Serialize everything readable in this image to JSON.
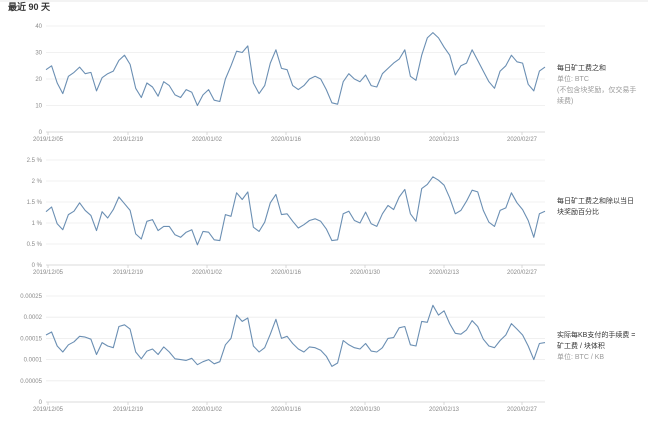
{
  "range_label": "最近 90 天",
  "chart_data": [
    {
      "type": "line",
      "title": "每日矿工费之和",
      "unit": "单位: BTC",
      "note": "(不包含块奖励，仅交易手续费)",
      "ylim": [
        0,
        40
      ],
      "y_ticks": [
        0,
        10,
        20,
        30,
        40
      ],
      "y_tick_labels": [
        "0",
        "10",
        "20",
        "30",
        "40"
      ],
      "x_ticks": [
        "2019/12/05",
        "2019/12/19",
        "2020/01/02",
        "2020/01/16",
        "2020/01/30",
        "2020/02/13",
        "2020/02/27"
      ],
      "grid": true,
      "values": [
        23.5,
        25,
        18.5,
        14.5,
        21,
        22.5,
        24.5,
        22,
        22.5,
        15.5,
        20.5,
        22,
        23,
        27,
        29,
        25.5,
        16.5,
        13,
        18.5,
        17,
        13.5,
        19,
        17.5,
        14,
        13,
        16,
        15,
        10,
        14,
        16,
        12,
        11.5,
        20,
        25,
        30.5,
        30,
        32.5,
        18.5,
        14.5,
        17.5,
        26,
        31,
        24,
        23.5,
        17.5,
        16,
        17.5,
        20,
        21,
        20,
        16,
        11,
        10.5,
        19,
        22,
        20,
        19,
        21.5,
        17.5,
        17,
        22,
        24,
        26,
        27.5,
        31,
        21,
        19.5,
        29,
        35.5,
        37.5,
        35.5,
        32,
        29,
        21.5,
        25,
        26,
        31,
        27,
        23,
        19,
        16.5,
        23,
        25,
        29,
        26.5,
        26,
        18,
        15.5,
        23,
        24.5
      ]
    },
    {
      "type": "line",
      "title": "每日矿工费之和除以当日块奖励百分比",
      "ylim": [
        0,
        2.5
      ],
      "y_ticks": [
        0,
        0.5,
        1,
        1.5,
        2,
        2.5
      ],
      "y_tick_labels": [
        "0 %",
        "0.5 %",
        "1 %",
        "1.5 %",
        "2 %",
        "2.5 %"
      ],
      "x_ticks": [
        "2019/12/05",
        "2019/12/19",
        "2020/01/02",
        "2020/01/16",
        "2020/01/30",
        "2020/02/13",
        "2020/02/27"
      ],
      "grid": true,
      "values": [
        1.27,
        1.38,
        0.98,
        0.84,
        1.2,
        1.28,
        1.48,
        1.3,
        1.18,
        0.82,
        1.27,
        1.12,
        1.32,
        1.62,
        1.46,
        1.3,
        0.74,
        0.62,
        1.04,
        1.08,
        0.82,
        0.92,
        0.92,
        0.72,
        0.66,
        0.78,
        0.84,
        0.48,
        0.8,
        0.78,
        0.6,
        0.58,
        1.2,
        1.16,
        1.72,
        1.56,
        1.74,
        0.9,
        0.8,
        1.02,
        1.48,
        1.68,
        1.2,
        1.22,
        1.04,
        0.88,
        0.96,
        1.06,
        1.1,
        1.04,
        0.86,
        0.58,
        0.6,
        1.22,
        1.28,
        1.06,
        1.0,
        1.26,
        0.98,
        0.92,
        1.22,
        1.42,
        1.32,
        1.62,
        1.8,
        1.22,
        1.04,
        1.82,
        1.92,
        2.1,
        2.02,
        1.9,
        1.6,
        1.22,
        1.3,
        1.52,
        1.78,
        1.74,
        1.3,
        1.02,
        0.92,
        1.3,
        1.36,
        1.72,
        1.48,
        1.32,
        1.06,
        0.66,
        1.22,
        1.28
      ]
    },
    {
      "type": "line",
      "title": "实际每KB支付的手续费 = 矿工费 / 块体积",
      "unit": "单位: BTC / KB",
      "ylim": [
        0,
        0.00025
      ],
      "y_ticks": [
        0,
        5e-05,
        0.0001,
        0.00015,
        0.0002,
        0.00025
      ],
      "y_tick_labels": [
        "0",
        "0.00005",
        "0.0001",
        "0.00015",
        "0.0002",
        "0.00025"
      ],
      "x_ticks": [
        "2019/12/05",
        "2019/12/19",
        "2020/01/02",
        "2020/01/16",
        "2020/01/30",
        "2020/02/13",
        "2020/02/27"
      ],
      "grid": true,
      "values": [
        0.000158,
        0.000165,
        0.000132,
        0.000118,
        0.000135,
        0.000142,
        0.000155,
        0.000153,
        0.000148,
        0.000112,
        0.00014,
        0.000132,
        0.000128,
        0.000178,
        0.000182,
        0.000172,
        0.000118,
        0.000102,
        0.00012,
        0.000125,
        0.000112,
        0.00013,
        0.000118,
        0.000102,
        0.0001,
        9.8e-05,
        0.000103,
        8.8e-05,
        9.5e-05,
        0.0001,
        9e-05,
        9.5e-05,
        0.000135,
        0.00015,
        0.000205,
        0.00019,
        0.000198,
        0.000132,
        0.000118,
        0.000128,
        0.00016,
        0.000195,
        0.00015,
        0.000155,
        0.000138,
        0.000125,
        0.000118,
        0.00013,
        0.000128,
        0.000122,
        0.000108,
        8.4e-05,
        9.2e-05,
        0.000145,
        0.000135,
        0.000128,
        0.000125,
        0.000138,
        0.00012,
        0.000118,
        0.000128,
        0.00015,
        0.000152,
        0.000175,
        0.000178,
        0.000135,
        0.000132,
        0.00019,
        0.000188,
        0.000228,
        0.000205,
        0.000215,
        0.000185,
        0.000162,
        0.00016,
        0.00017,
        0.000192,
        0.000178,
        0.000148,
        0.000132,
        0.000128,
        0.000145,
        0.000158,
        0.000185,
        0.000172,
        0.000158,
        0.000132,
        0.0001,
        0.000138,
        0.00014
      ]
    }
  ]
}
